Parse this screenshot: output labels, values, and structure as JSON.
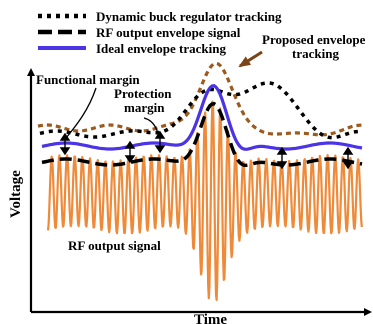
{
  "legend": [
    {
      "label": "Dynamic buck regulator tracking",
      "style": "dotted",
      "color": "#000000"
    },
    {
      "label": "RF output envelope signal",
      "style": "dashed",
      "color": "#000000"
    },
    {
      "label": "Ideal envelope tracking",
      "style": "solid",
      "color": "#4b33e6"
    }
  ],
  "annotations": {
    "proposed_line1": "Proposed envelope",
    "proposed_line2": "tracking",
    "functional_margin": "Functional margin",
    "protection_line1": "Protection",
    "protection_line2": "margin",
    "rf_signal": "RF output signal"
  },
  "axes": {
    "xlabel": "Time",
    "ylabel": "Voltage"
  },
  "colors": {
    "rf_signal": "#ef8a3a",
    "ideal": "#4b33e6",
    "proposed": "#9b5a1e",
    "buck": "#000000",
    "envelope": "#000000",
    "arrow_brown": "#7a4516"
  }
}
